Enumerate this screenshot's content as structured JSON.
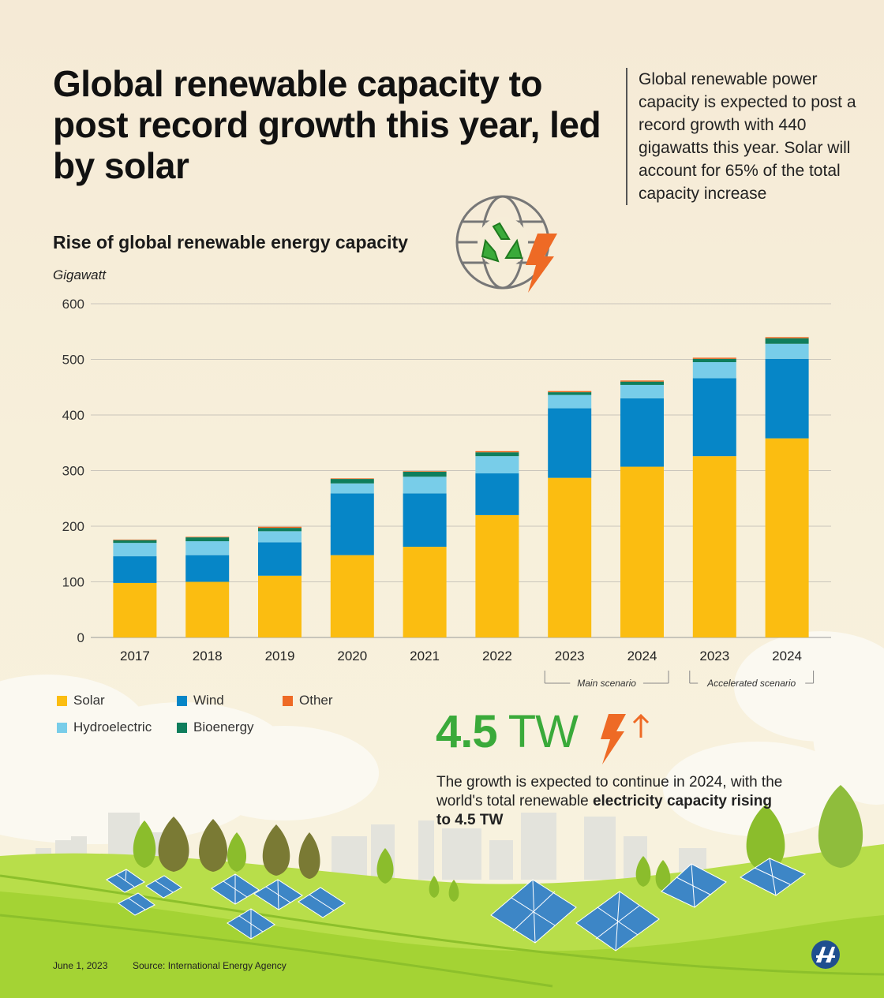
{
  "header": {
    "title": "Global renewable capacity to post record growth this year, led by solar",
    "summary": "Global renewable power capacity is expected to post a record growth with 440 gigawatts this year.  Solar will account for 65% of the total capacity increase"
  },
  "chart_data": {
    "type": "bar",
    "stacked": true,
    "title": "Rise of global renewable energy capacity",
    "ylabel": "Gigawatt",
    "xlabel": "",
    "ylim": [
      0,
      600
    ],
    "yticks": [
      0,
      100,
      200,
      300,
      400,
      500,
      600
    ],
    "grid": true,
    "categories": [
      "2017",
      "2018",
      "2019",
      "2020",
      "2021",
      "2022",
      "2023",
      "2024",
      "2023",
      "2024"
    ],
    "groups": [
      {
        "label": "Main scenario",
        "categories": [
          6,
          7
        ]
      },
      {
        "label": "Accelerated scenario",
        "categories": [
          8,
          9
        ]
      }
    ],
    "series": [
      {
        "name": "Solar",
        "color": "#fbbd11",
        "values": [
          98,
          100,
          111,
          148,
          163,
          220,
          287,
          307,
          326,
          358
        ]
      },
      {
        "name": "Wind",
        "color": "#0686c7",
        "values": [
          48,
          48,
          60,
          111,
          96,
          75,
          125,
          123,
          140,
          143
        ]
      },
      {
        "name": "Hydroelectric",
        "color": "#78cde9",
        "values": [
          24,
          25,
          20,
          18,
          30,
          31,
          24,
          24,
          29,
          27
        ]
      },
      {
        "name": "Bioenergy",
        "color": "#0f7e5c",
        "values": [
          5,
          7,
          6,
          8,
          9,
          7,
          5,
          6,
          6,
          10
        ]
      },
      {
        "name": "Other",
        "color": "#ee6a25",
        "values": [
          1,
          1,
          2,
          1,
          1,
          2,
          2,
          2,
          2,
          2
        ]
      }
    ]
  },
  "legend_order": [
    "Solar",
    "Wind",
    "Other",
    "Hydroelectric",
    "Bioenergy"
  ],
  "stat": {
    "value": "4.5",
    "unit": "TW",
    "text_pre": "The growth is expected to continue in 2024, with the world's total renewable ",
    "text_bold": "electricity capacity rising to 4.5 TW"
  },
  "footer": {
    "date": "June 1, 2023",
    "source": "Source: International Energy Agency"
  },
  "colors": {
    "lightning": "#ee6a25",
    "stat_green": "#3aaa3a",
    "grass": "#9fd23a"
  },
  "icons": [
    "globe-recycle-icon",
    "lightning-icon",
    "arrow-up-icon",
    "aa-logo-icon",
    "solar-panel-icon"
  ]
}
